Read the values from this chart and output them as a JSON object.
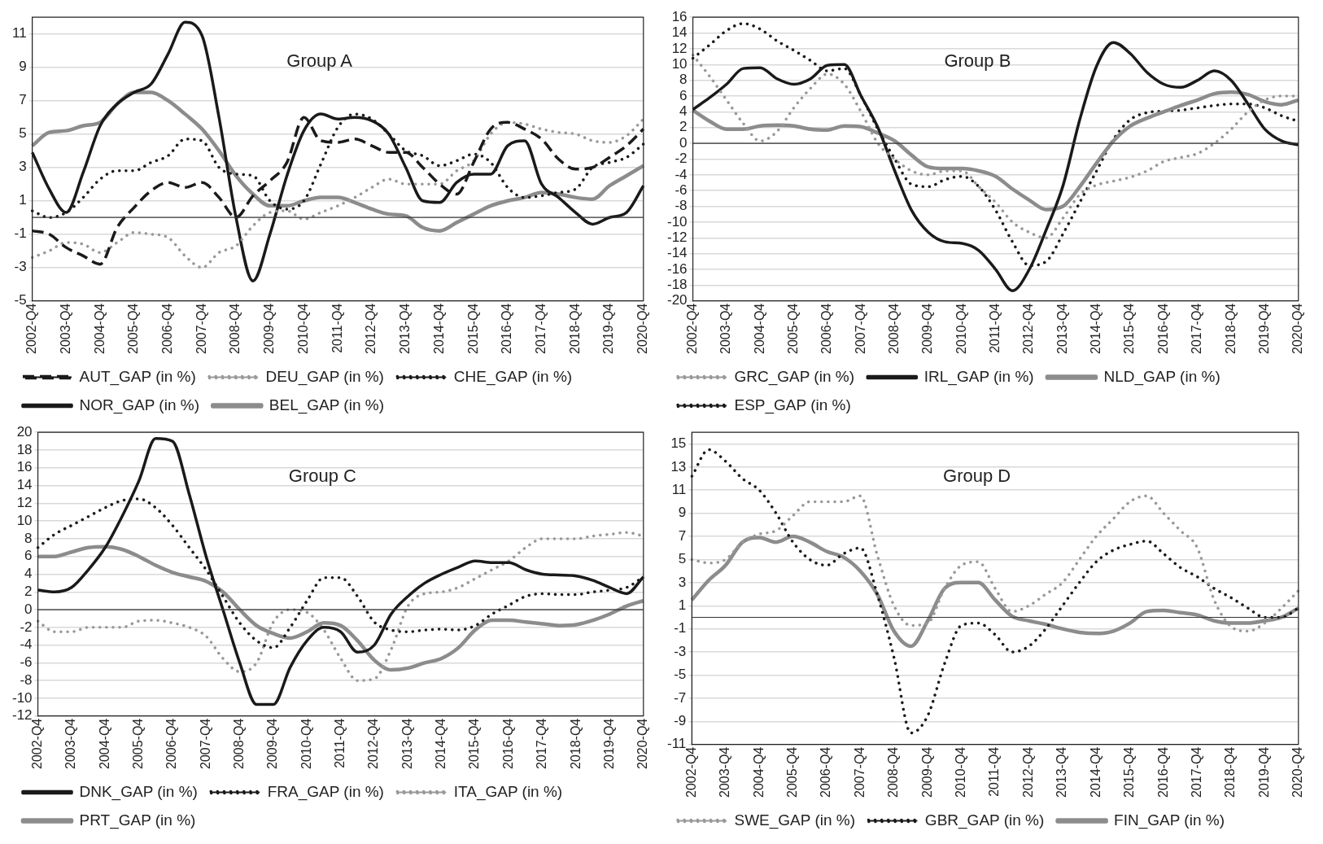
{
  "chart_data": [
    {
      "type": "line",
      "title": "Group A",
      "categories": [
        "2002-Q4",
        null,
        "2003-Q4",
        null,
        "2004-Q4",
        null,
        "2005-Q4",
        null,
        "2006-Q4",
        null,
        "2007-Q4",
        null,
        "2008-Q4",
        null,
        "2009-Q4",
        null,
        "2010-Q4",
        null,
        "2011-Q4",
        null,
        "2012-Q4",
        null,
        "2013-Q4",
        null,
        "2014-Q4",
        null,
        "2015-Q4",
        null,
        "2016-Q4",
        null,
        "2017-Q4",
        null,
        "2018-Q4",
        null,
        "2019-Q4",
        null,
        "2020-Q4"
      ],
      "ylim": [
        -5,
        12
      ],
      "yticks": [
        -5,
        -3,
        -1,
        1,
        3,
        5,
        7,
        9,
        11
      ],
      "grid": "y",
      "legend": "bottom",
      "marker": "none",
      "ref_lines": [
        {
          "axis": "y",
          "value": 0,
          "color": "#333333"
        }
      ],
      "series": [
        {
          "name": "AUT_GAP (in %)",
          "color": "#1a1a1a",
          "line_style": "dashed",
          "values": [
            -0.8,
            -1.0,
            -1.8,
            -2.3,
            -2.8,
            -0.6,
            0.6,
            1.6,
            2.1,
            1.8,
            2.1,
            1.2,
            0.0,
            1.3,
            2.2,
            3.3,
            6.0,
            4.6,
            4.5,
            4.7,
            4.3,
            3.9,
            3.9,
            3.0,
            2.0,
            1.4,
            3.3,
            5.3,
            5.7,
            5.3,
            4.7,
            3.5,
            2.9,
            3.0,
            3.6,
            4.3,
            5.3
          ]
        },
        {
          "name": "DEU_GAP (in %)",
          "color": "#999999",
          "line_style": "dotted",
          "values": [
            -2.4,
            -2.0,
            -1.5,
            -1.6,
            -2.1,
            -1.5,
            -0.9,
            -1.0,
            -1.2,
            -2.3,
            -3.0,
            -2.1,
            -1.7,
            -0.5,
            0.3,
            0.4,
            -0.1,
            0.3,
            0.7,
            1.2,
            1.8,
            2.3,
            2.0,
            2.0,
            2.0,
            2.8,
            3.4,
            5.0,
            5.7,
            5.6,
            5.3,
            5.1,
            5.0,
            4.6,
            4.5,
            4.9,
            5.9
          ]
        },
        {
          "name": "CHE_GAP (in %)",
          "color": "#1a1a1a",
          "line_style": "dotted",
          "values": [
            0.4,
            0.0,
            0.3,
            1.2,
            2.3,
            2.8,
            2.8,
            3.3,
            3.7,
            4.7,
            4.6,
            3.0,
            2.6,
            2.5,
            1.0,
            0.5,
            1.0,
            3.2,
            5.4,
            6.2,
            5.9,
            5.0,
            4.0,
            3.7,
            3.1,
            3.4,
            3.8,
            3.3,
            1.8,
            1.2,
            1.3,
            1.5,
            1.7,
            3.0,
            3.3,
            3.6,
            4.4
          ]
        },
        {
          "name": "NOR_GAP (in %)",
          "color": "#1a1a1a",
          "line_style": "solid",
          "values": [
            3.9,
            1.7,
            0.3,
            2.7,
            5.5,
            6.8,
            7.5,
            8.0,
            9.8,
            11.7,
            10.9,
            6.0,
            0.0,
            -3.8,
            -1.0,
            2.5,
            5.2,
            6.2,
            5.9,
            6.0,
            5.8,
            5.0,
            3.0,
            1.0,
            0.9,
            2.1,
            2.6,
            2.6,
            4.3,
            4.6,
            2.0,
            1.2,
            0.3,
            -0.4,
            0.0,
            0.3,
            1.9
          ]
        },
        {
          "name": "BEL_GAP (in %)",
          "color": "#8c8c8c",
          "line_style": "solid",
          "values": [
            4.3,
            5.1,
            5.2,
            5.5,
            5.7,
            6.8,
            7.5,
            7.5,
            7.0,
            6.2,
            5.3,
            4.0,
            2.5,
            1.4,
            0.7,
            0.7,
            1.0,
            1.2,
            1.2,
            0.9,
            0.5,
            0.2,
            0.1,
            -0.6,
            -0.8,
            -0.3,
            0.2,
            0.7,
            1.0,
            1.2,
            1.5,
            1.4,
            1.2,
            1.1,
            1.9,
            2.5,
            3.1
          ]
        }
      ]
    },
    {
      "type": "line",
      "title": "Group B",
      "categories": [
        "2002-Q4",
        null,
        "2003-Q4",
        null,
        "2004-Q4",
        null,
        "2005-Q4",
        null,
        "2006-Q4",
        null,
        "2007-Q4",
        null,
        "2008-Q4",
        null,
        "2009-Q4",
        null,
        "2010-Q4",
        null,
        "2011-Q4",
        null,
        "2012-Q4",
        null,
        "2013-Q4",
        null,
        "2014-Q4",
        null,
        "2015-Q4",
        null,
        "2016-Q4",
        null,
        "2017-Q4",
        null,
        "2018-Q4",
        null,
        "2019-Q4",
        null,
        "2020-Q4"
      ],
      "ylim": [
        -20,
        16
      ],
      "yticks": [
        -20,
        -18,
        -16,
        -14,
        -12,
        -10,
        -8,
        -6,
        -4,
        -2,
        0,
        2,
        4,
        6,
        8,
        10,
        12,
        14,
        16
      ],
      "grid": "y",
      "legend": "bottom",
      "marker": "none",
      "ref_lines": [
        {
          "axis": "y",
          "value": 0,
          "color": "#333333"
        }
      ],
      "series": [
        {
          "name": "GRC_GAP (in %)",
          "color": "#999999",
          "line_style": "dotted",
          "values": [
            11.2,
            8.5,
            5.5,
            2.5,
            0.3,
            1.5,
            4.5,
            7.0,
            8.8,
            7.5,
            4.0,
            0.0,
            -2.0,
            -3.5,
            -4.0,
            -3.5,
            -3.5,
            -5.5,
            -7.5,
            -10.0,
            -11.3,
            -12.0,
            -9.5,
            -6.5,
            -5.3,
            -4.8,
            -4.3,
            -3.5,
            -2.3,
            -1.8,
            -1.3,
            0.0,
            1.8,
            4.0,
            5.5,
            6.0,
            6.0
          ]
        },
        {
          "name": "IRL_GAP (in %)",
          "color": "#1a1a1a",
          "line_style": "solid",
          "values": [
            4.3,
            5.8,
            7.5,
            9.5,
            9.6,
            8.2,
            7.5,
            8.2,
            9.9,
            10.0,
            6.0,
            2.0,
            -3.5,
            -8.5,
            -11.3,
            -12.5,
            -12.7,
            -13.6,
            -16.0,
            -18.7,
            -16.0,
            -11.0,
            -5.4,
            3.0,
            9.8,
            12.8,
            11.4,
            9.0,
            7.5,
            7.1,
            8.0,
            9.2,
            8.0,
            5.0,
            1.8,
            0.3,
            -0.2
          ]
        },
        {
          "name": "NLD_GAP (in %)",
          "color": "#8c8c8c",
          "line_style": "solid",
          "values": [
            4.2,
            2.8,
            1.8,
            1.8,
            2.2,
            2.3,
            2.2,
            1.8,
            1.7,
            2.2,
            2.1,
            1.3,
            0.3,
            -1.5,
            -3.0,
            -3.2,
            -3.2,
            -3.5,
            -4.2,
            -5.8,
            -7.2,
            -8.4,
            -8.0,
            -5.5,
            -2.5,
            0.3,
            2.2,
            3.2,
            4.0,
            4.8,
            5.5,
            6.3,
            6.5,
            6.2,
            5.3,
            4.9,
            5.5
          ]
        },
        {
          "name": "ESP_GAP (in %)",
          "color": "#1a1a1a",
          "line_style": "dotted",
          "values": [
            10.8,
            12.5,
            14.3,
            15.2,
            14.5,
            13.0,
            11.8,
            10.5,
            9.2,
            9.5,
            6.0,
            1.8,
            -2.0,
            -5.2,
            -5.5,
            -4.6,
            -4.2,
            -5.5,
            -8.5,
            -12.5,
            -15.5,
            -15.0,
            -11.5,
            -7.5,
            -3.5,
            0.5,
            3.0,
            3.9,
            4.1,
            4.2,
            4.5,
            4.8,
            5.0,
            5.0,
            4.5,
            3.5,
            2.8
          ]
        }
      ]
    },
    {
      "type": "line",
      "title": "Group C",
      "categories": [
        "2002-Q4",
        null,
        "2003-Q4",
        null,
        "2004-Q4",
        null,
        "2005-Q4",
        null,
        "2006-Q4",
        null,
        "2007-Q4",
        null,
        "2008-Q4",
        null,
        "2009-Q4",
        null,
        "2010-Q4",
        null,
        "2011-Q4",
        null,
        "2012-Q4",
        null,
        "2013-Q4",
        null,
        "2014-Q4",
        null,
        "2015-Q4",
        null,
        "2016-Q4",
        null,
        "2017-Q4",
        null,
        "2018-Q4",
        null,
        "2019-Q4",
        null,
        "2020-Q4"
      ],
      "ylim": [
        -12,
        20
      ],
      "yticks": [
        -12,
        -10,
        -8,
        -6,
        -4,
        -2,
        0,
        2,
        4,
        6,
        8,
        10,
        12,
        14,
        16,
        18,
        20
      ],
      "grid": "y",
      "legend": "bottom",
      "marker": "none",
      "ref_lines": [
        {
          "axis": "y",
          "value": 0,
          "color": "#333333"
        }
      ],
      "series": [
        {
          "name": "DNK_GAP (in %)",
          "color": "#1a1a1a",
          "line_style": "solid",
          "values": [
            2.2,
            2.0,
            2.5,
            4.5,
            7.0,
            10.5,
            14.5,
            19.3,
            19.0,
            13.0,
            6.0,
            0.0,
            -6.0,
            -10.7,
            -10.7,
            -6.5,
            -3.5,
            -2.0,
            -2.5,
            -4.8,
            -4.0,
            -0.5,
            1.5,
            3.0,
            4.0,
            4.8,
            5.5,
            5.3,
            5.3,
            4.5,
            4.0,
            3.9,
            3.8,
            3.3,
            2.5,
            1.8,
            3.7
          ]
        },
        {
          "name": "FRA_GAP (in %)",
          "color": "#1a1a1a",
          "line_style": "dotted",
          "values": [
            7.0,
            8.5,
            9.5,
            10.5,
            11.5,
            12.3,
            12.5,
            11.5,
            9.5,
            7.0,
            4.5,
            1.5,
            -1.5,
            -3.5,
            -4.3,
            -2.0,
            1.0,
            3.6,
            3.6,
            1.5,
            -1.4,
            -2.3,
            -2.5,
            -2.3,
            -2.2,
            -2.3,
            -1.8,
            -0.5,
            0.5,
            1.5,
            1.8,
            1.7,
            1.7,
            2.0,
            2.2,
            2.5,
            3.7
          ]
        },
        {
          "name": "ITA_GAP (in %)",
          "color": "#999999",
          "line_style": "dotted",
          "values": [
            -1.3,
            -2.5,
            -2.5,
            -2.0,
            -2.0,
            -2.0,
            -1.3,
            -1.2,
            -1.5,
            -2.0,
            -3.0,
            -5.5,
            -7.0,
            -6.0,
            -1.4,
            0.0,
            -0.3,
            -2.3,
            -5.5,
            -8.0,
            -7.8,
            -4.5,
            0.4,
            1.8,
            2.0,
            2.5,
            3.5,
            4.5,
            5.5,
            7.0,
            8.0,
            8.0,
            8.0,
            8.3,
            8.5,
            8.7,
            8.3
          ]
        },
        {
          "name": "PRT_GAP (in %)",
          "color": "#8c8c8c",
          "line_style": "solid",
          "values": [
            6.0,
            6.0,
            6.5,
            7.0,
            7.1,
            6.8,
            6.0,
            5.0,
            4.2,
            3.7,
            3.2,
            2.0,
            0.0,
            -1.8,
            -2.7,
            -3.2,
            -2.5,
            -1.5,
            -1.8,
            -3.5,
            -5.7,
            -6.8,
            -6.6,
            -6.0,
            -5.5,
            -4.3,
            -2.3,
            -1.2,
            -1.2,
            -1.4,
            -1.6,
            -1.8,
            -1.7,
            -1.2,
            -0.5,
            0.4,
            1.0
          ]
        }
      ]
    },
    {
      "type": "line",
      "title": "Group D",
      "categories": [
        "2002-Q4",
        null,
        "2003-Q4",
        null,
        "2004-Q4",
        null,
        "2005-Q4",
        null,
        "2006-Q4",
        null,
        "2007-Q4",
        null,
        "2008-Q4",
        null,
        "2009-Q4",
        null,
        "2010-Q4",
        null,
        "2011-Q4",
        null,
        "2012-Q4",
        null,
        "2013-Q4",
        null,
        "2014-Q4",
        null,
        "2015-Q4",
        null,
        "2016-Q4",
        null,
        "2017-Q4",
        null,
        "2018-Q4",
        null,
        "2019-Q4",
        null,
        "2020-Q4"
      ],
      "ylim": [
        -11,
        16
      ],
      "yticks": [
        -11,
        -9,
        -7,
        -5,
        -3,
        -1,
        1,
        3,
        5,
        7,
        9,
        11,
        13,
        15
      ],
      "grid": "y",
      "legend": "bottom",
      "marker": "none",
      "ref_lines": [
        {
          "axis": "y",
          "value": 0,
          "color": "#333333"
        }
      ],
      "series": [
        {
          "name": "SWE_GAP (in %)",
          "color": "#999999",
          "line_style": "dotted",
          "values": [
            5.0,
            4.7,
            5.0,
            6.5,
            7.2,
            7.5,
            8.8,
            10.0,
            10.0,
            10.0,
            10.5,
            5.4,
            1.0,
            -0.7,
            -0.5,
            2.5,
            4.5,
            4.8,
            2.5,
            0.5,
            1.0,
            2.0,
            3.0,
            5.0,
            7.0,
            8.5,
            10.0,
            10.5,
            9.0,
            7.5,
            6.0,
            1.5,
            -0.8,
            -1.2,
            -0.5,
            0.8,
            2.3
          ]
        },
        {
          "name": "GBR_GAP (in %)",
          "color": "#1a1a1a",
          "line_style": "dotted",
          "values": [
            12.2,
            14.5,
            13.5,
            12.0,
            11.0,
            9.0,
            6.5,
            5.0,
            4.5,
            5.5,
            6.0,
            2.0,
            -3.5,
            -10.0,
            -8.5,
            -4.0,
            -0.7,
            -0.5,
            -1.5,
            -3.0,
            -2.5,
            -1.0,
            1.0,
            3.0,
            4.8,
            5.8,
            6.3,
            6.6,
            5.5,
            4.3,
            3.5,
            2.5,
            1.7,
            0.8,
            0.0,
            0.0,
            0.8
          ]
        },
        {
          "name": "FIN_GAP (in %)",
          "color": "#8c8c8c",
          "line_style": "solid",
          "values": [
            1.5,
            3.2,
            4.5,
            6.5,
            6.9,
            6.5,
            7.0,
            6.5,
            5.7,
            5.2,
            4.0,
            2.0,
            -1.2,
            -2.5,
            -0.3,
            2.5,
            3.0,
            3.0,
            1.5,
            0.1,
            -0.3,
            -0.6,
            -1.0,
            -1.3,
            -1.4,
            -1.2,
            -0.5,
            0.5,
            0.6,
            0.4,
            0.2,
            -0.3,
            -0.5,
            -0.5,
            -0.3,
            0.0,
            0.8
          ]
        }
      ]
    }
  ]
}
